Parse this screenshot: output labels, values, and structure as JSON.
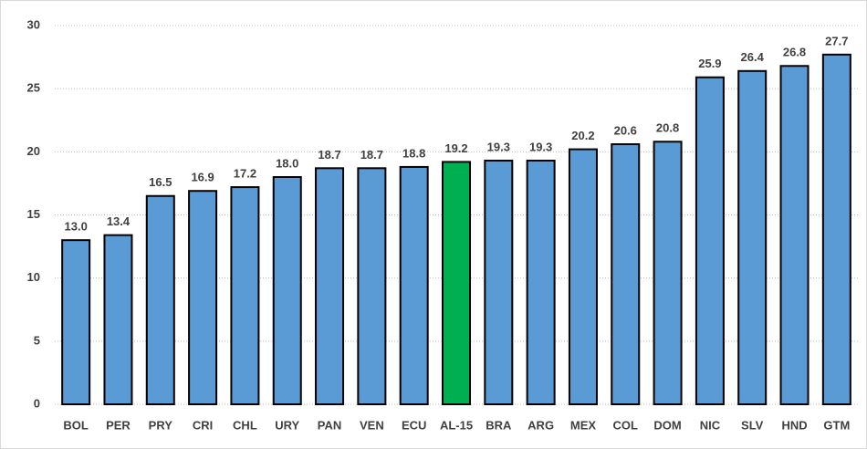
{
  "chart_data": {
    "type": "bar",
    "categories": [
      "BOL",
      "PER",
      "PRY",
      "CRI",
      "CHL",
      "URY",
      "PAN",
      "VEN",
      "ECU",
      "AL-15",
      "BRA",
      "ARG",
      "MEX",
      "COL",
      "DOM",
      "NIC",
      "SLV",
      "HND",
      "GTM"
    ],
    "values": [
      13.0,
      13.4,
      16.5,
      16.9,
      17.2,
      18.0,
      18.7,
      18.7,
      18.8,
      19.2,
      19.3,
      19.3,
      20.2,
      20.6,
      20.8,
      25.9,
      26.4,
      26.8,
      27.7
    ],
    "value_labels": [
      "13.0",
      "13.4",
      "16.5",
      "16.9",
      "17.2",
      "18.0",
      "18.7",
      "18.7",
      "18.8",
      "19.2",
      "19.3",
      "19.3",
      "20.2",
      "20.6",
      "20.8",
      "25.9",
      "26.4",
      "26.8",
      "27.7"
    ],
    "colors": [
      "#5b9bd5",
      "#5b9bd5",
      "#5b9bd5",
      "#5b9bd5",
      "#5b9bd5",
      "#5b9bd5",
      "#5b9bd5",
      "#5b9bd5",
      "#5b9bd5",
      "#00b050",
      "#5b9bd5",
      "#5b9bd5",
      "#5b9bd5",
      "#5b9bd5",
      "#5b9bd5",
      "#5b9bd5",
      "#5b9bd5",
      "#5b9bd5",
      "#5b9bd5"
    ],
    "ylim": [
      0,
      30
    ],
    "yticks": [
      0,
      5,
      10,
      15,
      20,
      25,
      30
    ],
    "grid": true
  }
}
